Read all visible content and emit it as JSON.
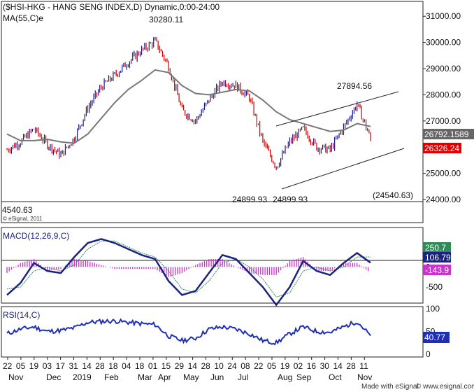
{
  "header": {
    "title": "($HSI-HKG - HANG SENG INDEX,D) Dynamic,0:00-24:00",
    "ma_label": "MA(55,C)e",
    "copyright": "© eSignal, 2011",
    "footer": "Made with eSignal",
    "footer_url": "© www.esignal.com"
  },
  "annotations": {
    "high": "30280.11",
    "peak_right": "27894.56",
    "low1": "24899.93",
    "low2": "24899.93",
    "bracket_low": "(24540.63)",
    "left_cut": "4540.63"
  },
  "price_axis": {
    "ticks": [
      "31000.00",
      "30000.00",
      "29000.00",
      "28000.00",
      "27000.00",
      "26000.00",
      "25000.00",
      "24000.00"
    ],
    "ma_value": "26792.1589",
    "last_value": "26326.24"
  },
  "macd_panel": {
    "label": "MACD(12,26,9,C)",
    "ticks": [
      "500",
      "0",
      "-500"
    ],
    "signal_value": "250.7",
    "macd_value": "106.79",
    "hist_value": "-143.9"
  },
  "rsi_panel": {
    "label": "RSI(14,C)",
    "ticks": [
      "100",
      "50",
      "0"
    ],
    "value": "40.77"
  },
  "x_axis": {
    "day_ticks": [
      "22",
      "05",
      "19",
      "03",
      "17",
      "31",
      "14",
      "28",
      "18",
      "04",
      "18",
      "01",
      "15",
      "29",
      "14",
      "28",
      "10",
      "24",
      "08",
      "22",
      "05",
      "19",
      "02",
      "16",
      "30",
      "14",
      "28",
      "11"
    ],
    "month_labels": [
      "Nov",
      "Dec",
      "2019",
      "Feb",
      "Mar",
      "Apr",
      "May",
      "Jun",
      "Jul",
      "Aug",
      "Sep",
      "Oct",
      "Nov"
    ]
  },
  "colors": {
    "up": "#1a1a8c",
    "down": "#cc0000",
    "ma": "#777777",
    "macd_line": "#1a237e",
    "signal": "#2e8b57",
    "hist": "#cc33cc",
    "rsi": "#1f2fb5",
    "ma_badge": "#666666",
    "last_badge": "#dd0000",
    "signal_badge": "#2e8b57",
    "macd_badge": "#1a237e",
    "hist_badge": "#cc33cc",
    "rsi_badge": "#1f2fb5"
  },
  "chart_data": {
    "type": "line",
    "title": "($HSI-HKG - HANG SENG INDEX,D) Dynamic,0:00-24:00",
    "x": [
      "22",
      "05",
      "19",
      "03",
      "17",
      "31",
      "14",
      "28",
      "18",
      "04",
      "18",
      "01",
      "15",
      "29",
      "14",
      "28",
      "10",
      "24",
      "08",
      "22",
      "05",
      "19",
      "02",
      "16",
      "30",
      "14",
      "28",
      "11"
    ],
    "series": [
      {
        "name": "$HSI-HKG",
        "values": [
          25900,
          26200,
          26700,
          26100,
          25700,
          26350,
          27500,
          28300,
          28750,
          29250,
          29700,
          30050,
          29100,
          27400,
          27000,
          27800,
          28500,
          28350,
          27900,
          26200,
          25250,
          26200,
          26700,
          26000,
          25900,
          26750,
          27650,
          26326
        ]
      },
      {
        "name": "MA(55,C)e",
        "values": [
          26500,
          26250,
          26250,
          26300,
          26200,
          26150,
          26500,
          27100,
          27700,
          28200,
          28550,
          28950,
          28850,
          28350,
          28050,
          28000,
          28100,
          28200,
          28150,
          27800,
          27350,
          27050,
          26900,
          26750,
          26600,
          26650,
          26900,
          26792
        ]
      }
    ],
    "ylim": [
      24000,
      31300
    ],
    "annotations": [
      "30280.11",
      "27894.56",
      "24899.93",
      "24899.93",
      "(24540.63)"
    ],
    "macd": {
      "name": "MACD(12,26,9,C)",
      "macd": [
        -700,
        -400,
        100,
        -100,
        -150,
        250,
        600,
        700,
        600,
        450,
        300,
        200,
        -350,
        -700,
        -600,
        -150,
        300,
        200,
        -150,
        -500,
        -950,
        -500,
        150,
        -100,
        -200,
        100,
        350,
        107
      ],
      "signal": [
        -550,
        -500,
        -100,
        0,
        -100,
        50,
        450,
        650,
        650,
        500,
        350,
        250,
        -100,
        -550,
        -650,
        -350,
        100,
        200,
        0,
        -300,
        -750,
        -650,
        -100,
        0,
        -100,
        0,
        250,
        251
      ],
      "histogram": [
        -150,
        100,
        200,
        -100,
        -50,
        200,
        150,
        50,
        -50,
        -50,
        -50,
        -50,
        -250,
        -150,
        50,
        200,
        200,
        0,
        -150,
        -200,
        -200,
        150,
        250,
        -100,
        -100,
        100,
        100,
        -144
      ],
      "ylim": [
        -850,
        900
      ]
    },
    "rsi": {
      "name": "RSI(14,C)",
      "values": [
        45,
        55,
        60,
        50,
        52,
        58,
        70,
        72,
        73,
        70,
        67,
        65,
        40,
        30,
        35,
        55,
        60,
        55,
        45,
        30,
        25,
        45,
        60,
        50,
        48,
        60,
        72,
        40.77
      ],
      "ylim": [
        0,
        100
      ]
    }
  }
}
